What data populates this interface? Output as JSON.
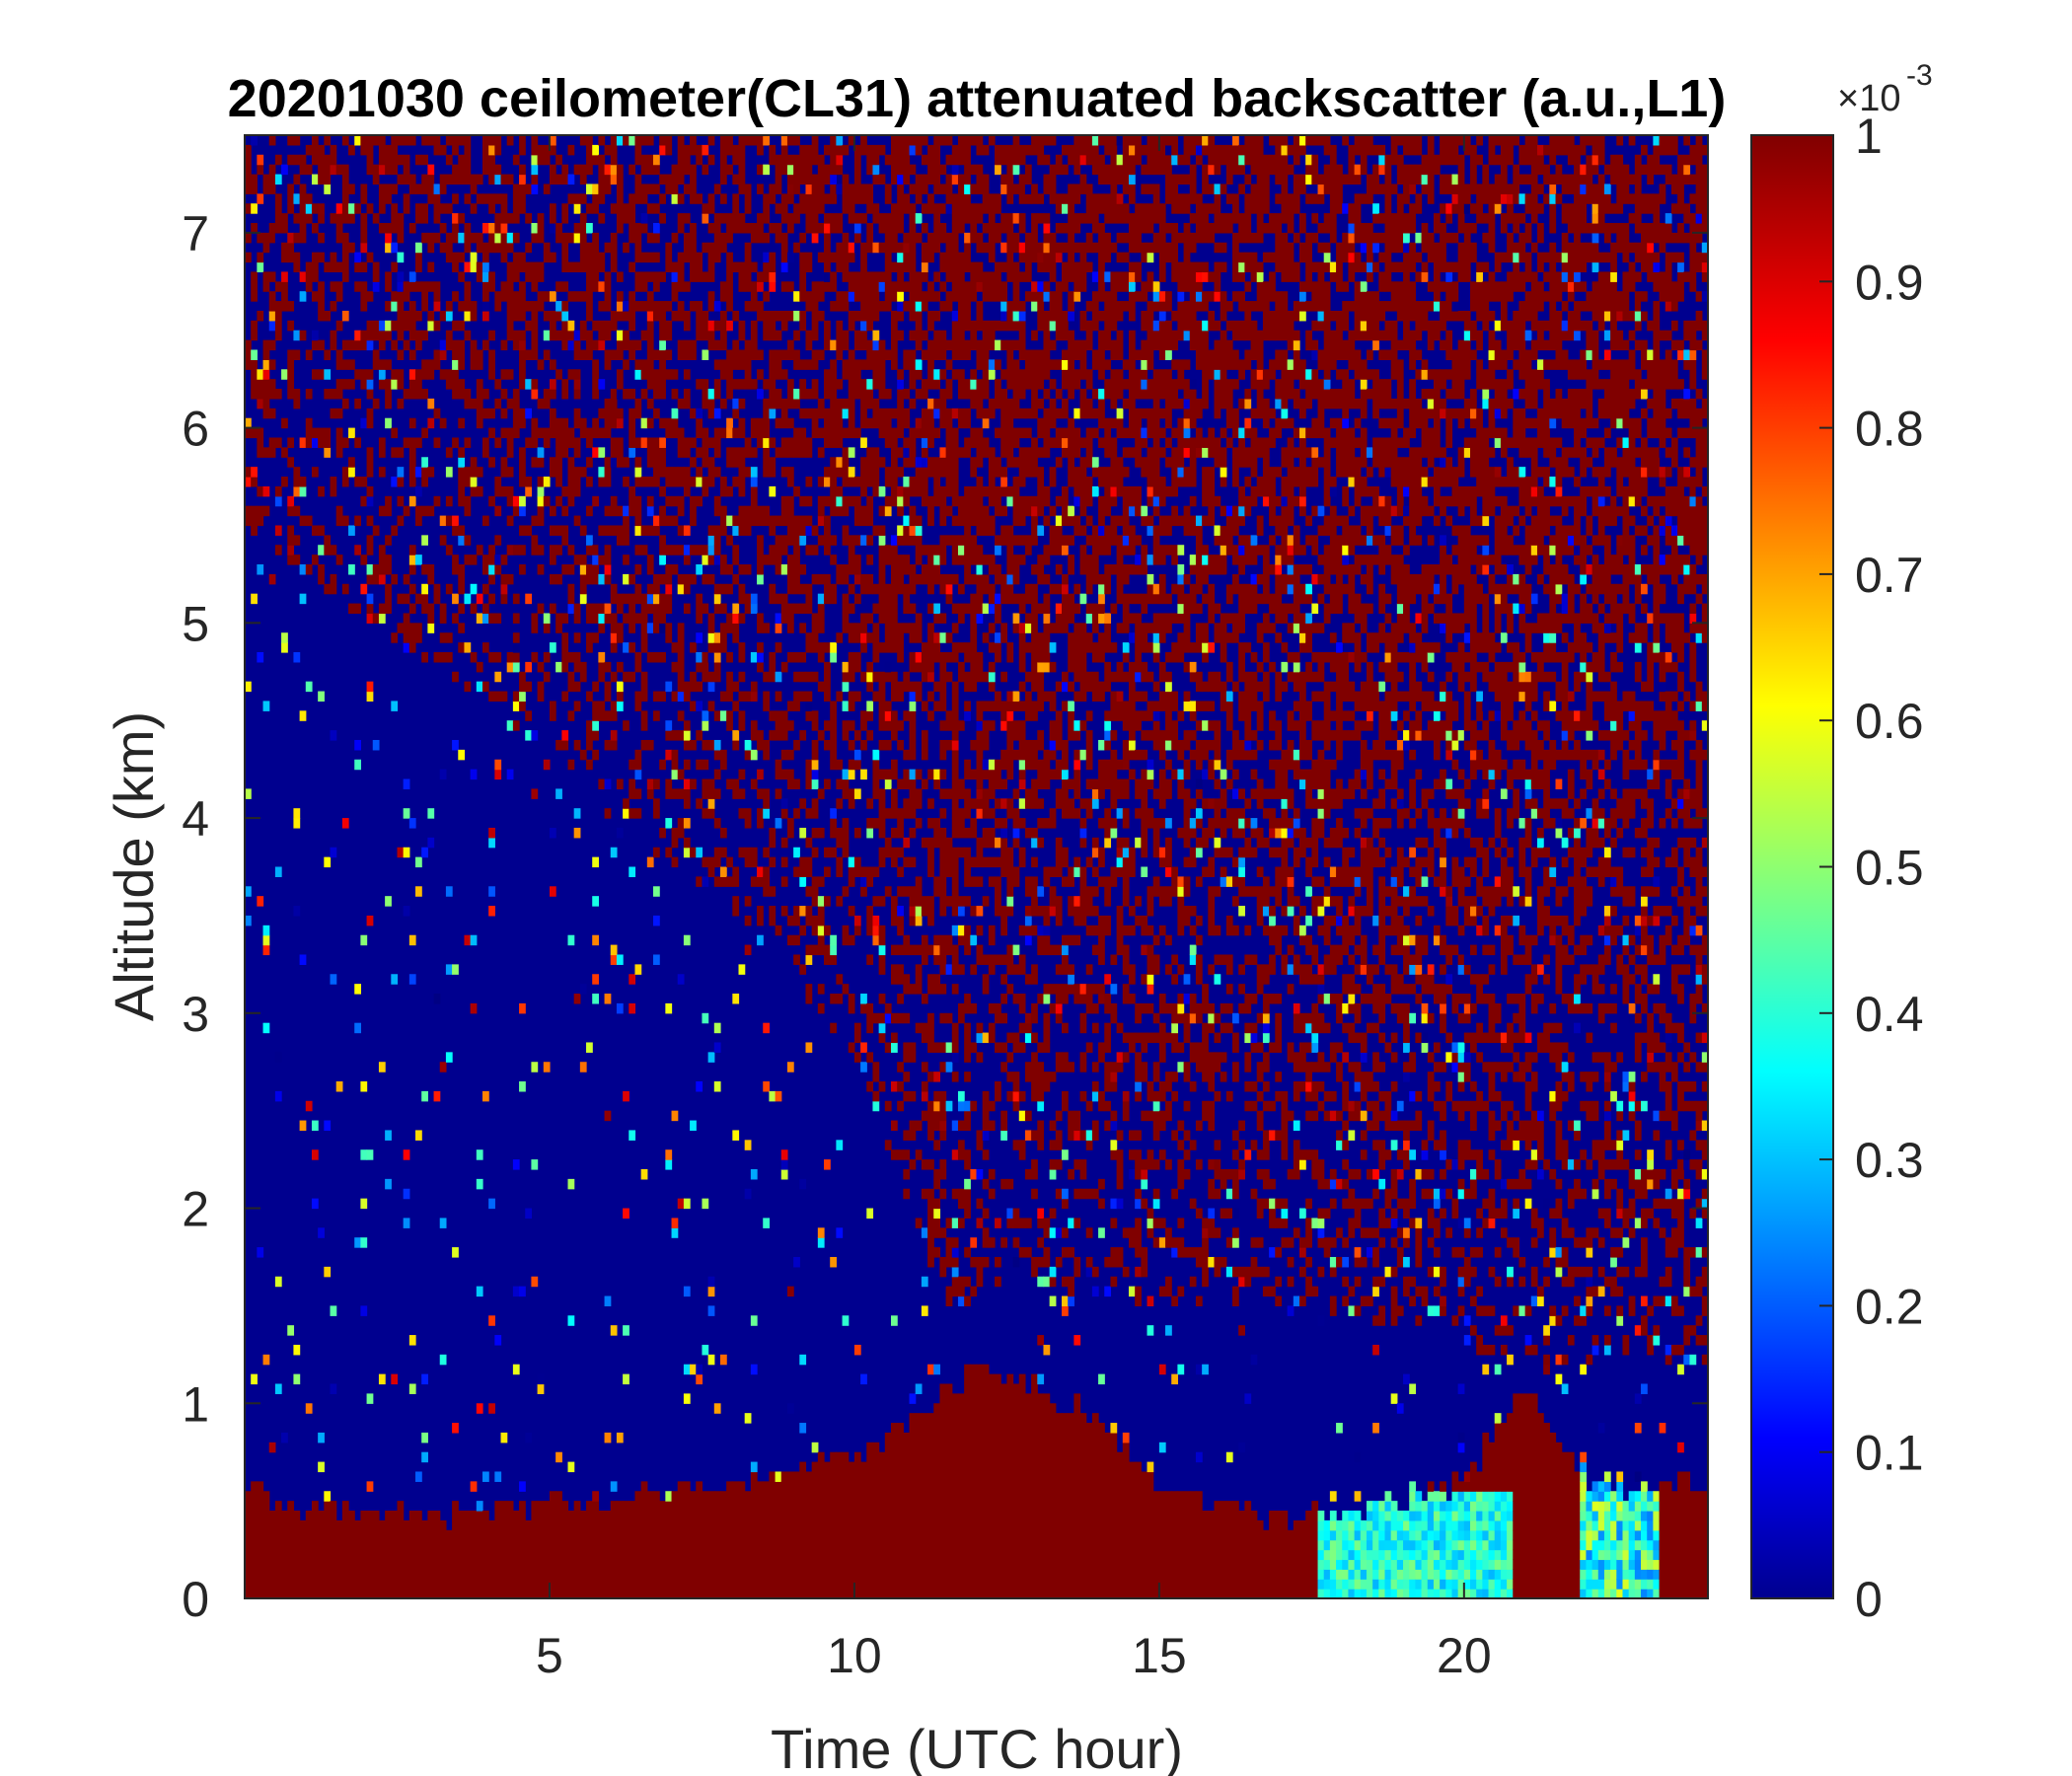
{
  "chart_data": {
    "type": "heatmap",
    "title": "20201030 ceilometer(CL31) attenuated backscatter (a.u.,L1)",
    "xlabel": "Time (UTC hour)",
    "ylabel": "Altitude (km)",
    "xlim": [
      0,
      24
    ],
    "ylim": [
      0,
      7.5
    ],
    "xticks": [
      5,
      10,
      15,
      20
    ],
    "yticks": [
      0,
      1,
      2,
      3,
      4,
      5,
      6,
      7
    ],
    "colorbar": {
      "label_base": "×10",
      "label_exponent": "-3",
      "range": [
        0,
        1
      ],
      "ticks": [
        0,
        0.1,
        0.2,
        0.3,
        0.4,
        0.5,
        0.6,
        0.7,
        0.8,
        0.9,
        1
      ],
      "tick_labels": [
        "0",
        "0.1",
        "0.2",
        "0.3",
        "0.4",
        "0.5",
        "0.6",
        "0.7",
        "0.8",
        "0.9",
        "1"
      ],
      "colormap": "jet"
    },
    "grid": false,
    "colors": {
      "jet_low": "#00008f",
      "jet_high": "#800000"
    },
    "boundary_layer_top_km": [
      [
        0,
        0.55
      ],
      [
        1,
        0.45
      ],
      [
        2,
        0.45
      ],
      [
        3,
        0.42
      ],
      [
        4,
        0.45
      ],
      [
        5,
        0.5
      ],
      [
        6,
        0.5
      ],
      [
        7,
        0.55
      ],
      [
        8,
        0.6
      ],
      [
        9,
        0.65
      ],
      [
        10,
        0.75
      ],
      [
        11,
        0.9
      ],
      [
        12,
        1.2
      ],
      [
        13,
        1.1
      ],
      [
        14,
        0.9
      ],
      [
        15,
        0.55
      ],
      [
        16,
        0.45
      ],
      [
        17,
        0.42
      ],
      [
        18,
        0.45
      ],
      [
        19,
        0.5
      ],
      [
        20,
        0.6
      ],
      [
        21,
        1.1
      ],
      [
        22,
        0.6
      ],
      [
        23,
        0.55
      ],
      [
        24,
        0.6
      ]
    ],
    "noise_onset_altitude_km": [
      [
        0,
        5.5
      ],
      [
        2,
        5.0
      ],
      [
        4,
        4.6
      ],
      [
        6,
        4.0
      ],
      [
        8,
        3.5
      ],
      [
        10,
        2.8
      ],
      [
        11.5,
        1.5
      ],
      [
        13,
        1.6
      ],
      [
        15,
        1.5
      ],
      [
        17,
        1.5
      ],
      [
        19,
        1.4
      ],
      [
        21,
        1.2
      ],
      [
        24,
        1.2
      ]
    ],
    "moderate_signal_regions": [
      {
        "x_range": [
          17.6,
          20.8
        ],
        "y_range": [
          0,
          0.55
        ],
        "value_range": [
          0.3,
          0.5
        ]
      },
      {
        "x_range": [
          21.9,
          23.2
        ],
        "y_range": [
          0,
          0.9
        ],
        "value_range": [
          0.25,
          0.6
        ]
      }
    ]
  }
}
